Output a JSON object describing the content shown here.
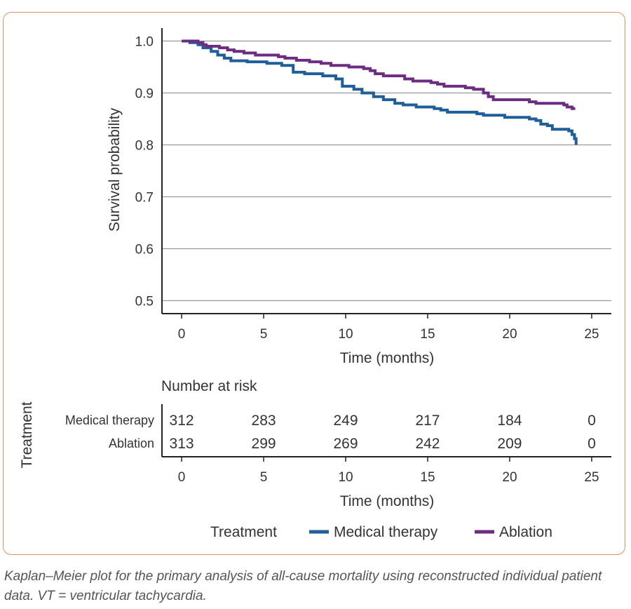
{
  "chart_data": {
    "type": "line",
    "subtype": "kaplan-meier",
    "title": "",
    "xlabel": "Time (months)",
    "ylabel": "Survival probability",
    "xlim": [
      -1.2,
      26.2
    ],
    "ylim": [
      0.475,
      1.025
    ],
    "xticks": [
      0,
      5,
      10,
      15,
      20,
      25
    ],
    "yticks": [
      0.5,
      0.6,
      0.7,
      0.8,
      0.9,
      1.0
    ],
    "ytick_labels": [
      "0.5",
      "0.6",
      "0.7",
      "0.8",
      "0.9",
      "1.0"
    ],
    "grid": "horizontal",
    "series": [
      {
        "name": "Medical therapy",
        "color": "#1f5e9a",
        "points": [
          [
            0,
            1.0
          ],
          [
            0.5,
            0.997
          ],
          [
            1.0,
            0.993
          ],
          [
            1.3,
            0.987
          ],
          [
            1.8,
            0.98
          ],
          [
            2.2,
            0.973
          ],
          [
            2.6,
            0.967
          ],
          [
            3.0,
            0.962
          ],
          [
            4.0,
            0.96
          ],
          [
            5.2,
            0.957
          ],
          [
            6.1,
            0.953
          ],
          [
            6.8,
            0.94
          ],
          [
            7.5,
            0.937
          ],
          [
            8.6,
            0.933
          ],
          [
            9.4,
            0.927
          ],
          [
            9.8,
            0.913
          ],
          [
            10.5,
            0.907
          ],
          [
            11.0,
            0.9
          ],
          [
            11.7,
            0.893
          ],
          [
            12.3,
            0.887
          ],
          [
            13.0,
            0.88
          ],
          [
            13.5,
            0.877
          ],
          [
            14.3,
            0.873
          ],
          [
            15.4,
            0.87
          ],
          [
            15.8,
            0.867
          ],
          [
            16.2,
            0.863
          ],
          [
            18.0,
            0.86
          ],
          [
            18.4,
            0.857
          ],
          [
            19.7,
            0.853
          ],
          [
            21.2,
            0.85
          ],
          [
            21.6,
            0.847
          ],
          [
            21.9,
            0.84
          ],
          [
            22.3,
            0.837
          ],
          [
            22.6,
            0.83
          ],
          [
            23.6,
            0.827
          ],
          [
            23.8,
            0.82
          ],
          [
            23.95,
            0.812
          ],
          [
            24.05,
            0.8
          ]
        ]
      },
      {
        "name": "Ablation",
        "color": "#6b2c81",
        "points": [
          [
            0,
            1.0
          ],
          [
            1.0,
            0.997
          ],
          [
            1.3,
            0.993
          ],
          [
            1.5,
            0.99
          ],
          [
            2.3,
            0.987
          ],
          [
            2.8,
            0.983
          ],
          [
            3.2,
            0.98
          ],
          [
            3.8,
            0.977
          ],
          [
            4.5,
            0.973
          ],
          [
            5.9,
            0.97
          ],
          [
            6.3,
            0.967
          ],
          [
            7.0,
            0.963
          ],
          [
            7.8,
            0.96
          ],
          [
            8.5,
            0.957
          ],
          [
            9.1,
            0.953
          ],
          [
            10.2,
            0.95
          ],
          [
            11.1,
            0.947
          ],
          [
            11.5,
            0.943
          ],
          [
            11.8,
            0.937
          ],
          [
            12.3,
            0.933
          ],
          [
            13.6,
            0.927
          ],
          [
            14.1,
            0.923
          ],
          [
            15.2,
            0.92
          ],
          [
            15.6,
            0.917
          ],
          [
            16.0,
            0.913
          ],
          [
            17.3,
            0.91
          ],
          [
            17.8,
            0.907
          ],
          [
            18.4,
            0.9
          ],
          [
            18.7,
            0.893
          ],
          [
            19.0,
            0.887
          ],
          [
            21.2,
            0.883
          ],
          [
            21.6,
            0.88
          ],
          [
            23.3,
            0.877
          ],
          [
            23.5,
            0.873
          ],
          [
            23.8,
            0.87
          ],
          [
            24.0,
            0.87
          ]
        ]
      }
    ],
    "risk_table": {
      "title": "Number at risk",
      "axis_title": "Treatment",
      "xlabel": "Time (months)",
      "times": [
        0,
        5,
        10,
        15,
        20,
        25
      ],
      "rows": [
        {
          "label": "Medical therapy",
          "values": [
            "312",
            "283",
            "249",
            "217",
            "184",
            "0"
          ]
        },
        {
          "label": "Ablation",
          "values": [
            "313",
            "299",
            "269",
            "242",
            "209",
            "0"
          ]
        }
      ]
    },
    "legend": {
      "title": "Treatment",
      "placement": "bottom",
      "entries": [
        "Medical therapy",
        "Ablation"
      ]
    }
  },
  "caption": "Kaplan–Meier plot for the primary analysis of all-cause mortality using reconstructed individual patient data. VT = ventricular tachycardia."
}
